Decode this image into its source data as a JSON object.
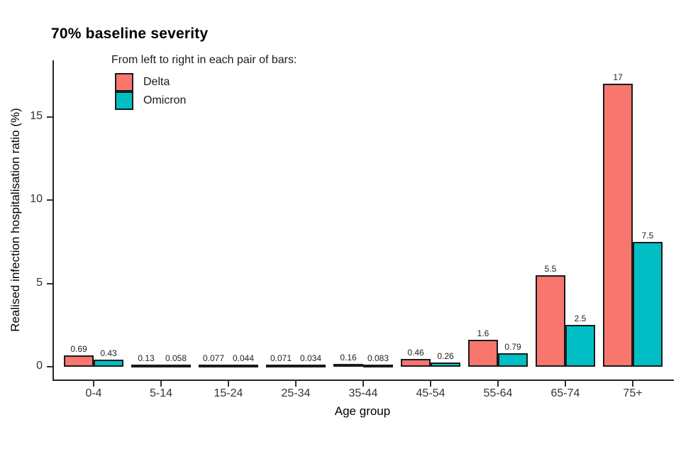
{
  "chart_data": {
    "type": "bar",
    "title": "70% baseline severity",
    "legend_title": "From left to right in each pair of bars:",
    "legend_position": "top-left-inside",
    "xlabel": "Age group",
    "ylabel": "Realised infection hospitalisation ratio (%)",
    "categories": [
      "0-4",
      "5-14",
      "15-24",
      "25-34",
      "35-44",
      "45-54",
      "55-64",
      "65-74",
      "75+"
    ],
    "series": [
      {
        "name": "Delta",
        "color": "#F8766D",
        "values": [
          0.69,
          0.13,
          0.077,
          0.071,
          0.16,
          0.46,
          1.6,
          5.5,
          17
        ],
        "labels": [
          "0.69",
          "0.13",
          "0.077",
          "0.071",
          "0.16",
          "0.46",
          "1.6",
          "5.5",
          "17"
        ]
      },
      {
        "name": "Omicron",
        "color": "#00BFC4",
        "values": [
          0.43,
          0.058,
          0.044,
          0.034,
          0.083,
          0.26,
          0.79,
          2.5,
          7.5
        ],
        "labels": [
          "0.43",
          "0.058",
          "0.044",
          "0.034",
          "0.083",
          "0.26",
          "0.79",
          "2.5",
          "7.5"
        ]
      }
    ],
    "y_ticks": [
      "0",
      "5",
      "10",
      "15"
    ],
    "y_tick_values": [
      0,
      5,
      10,
      15
    ],
    "ylim": [
      0,
      18.5
    ],
    "grid": false,
    "bar_border_color": "#1a1a1a",
    "axis_color": "#262626"
  }
}
